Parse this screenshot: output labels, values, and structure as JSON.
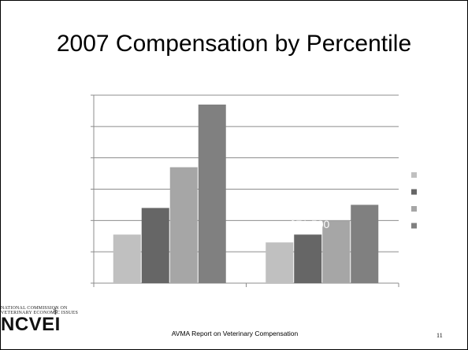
{
  "slide": {
    "title": "2007 Compensation by Percentile",
    "footer": "AVMA Report on Veterinary Compensation",
    "page_number": "11"
  },
  "logo": {
    "line1": "NATIONAL COMMISSION ON",
    "line2": "VETERINARY ECONOMIC ISSUES",
    "mark": "NCVEI"
  },
  "chart_data": {
    "type": "bar",
    "title": "",
    "xlabel": "",
    "ylabel": "",
    "categories": [
      "",
      ""
    ],
    "ylim": [
      0,
      6
    ],
    "grid": true,
    "legend_placement": "right",
    "series": [
      {
        "values": [
          1.55,
          1.3
        ],
        "color": "#c0c0c0"
      },
      {
        "values": [
          2.4,
          1.55
        ],
        "color": "#666666"
      },
      {
        "values": [
          3.7,
          2.0
        ],
        "color": "#a6a6a6"
      },
      {
        "values": [
          5.7,
          2.5
        ],
        "color": "#808080"
      }
    ],
    "annotation": "$71,500"
  }
}
